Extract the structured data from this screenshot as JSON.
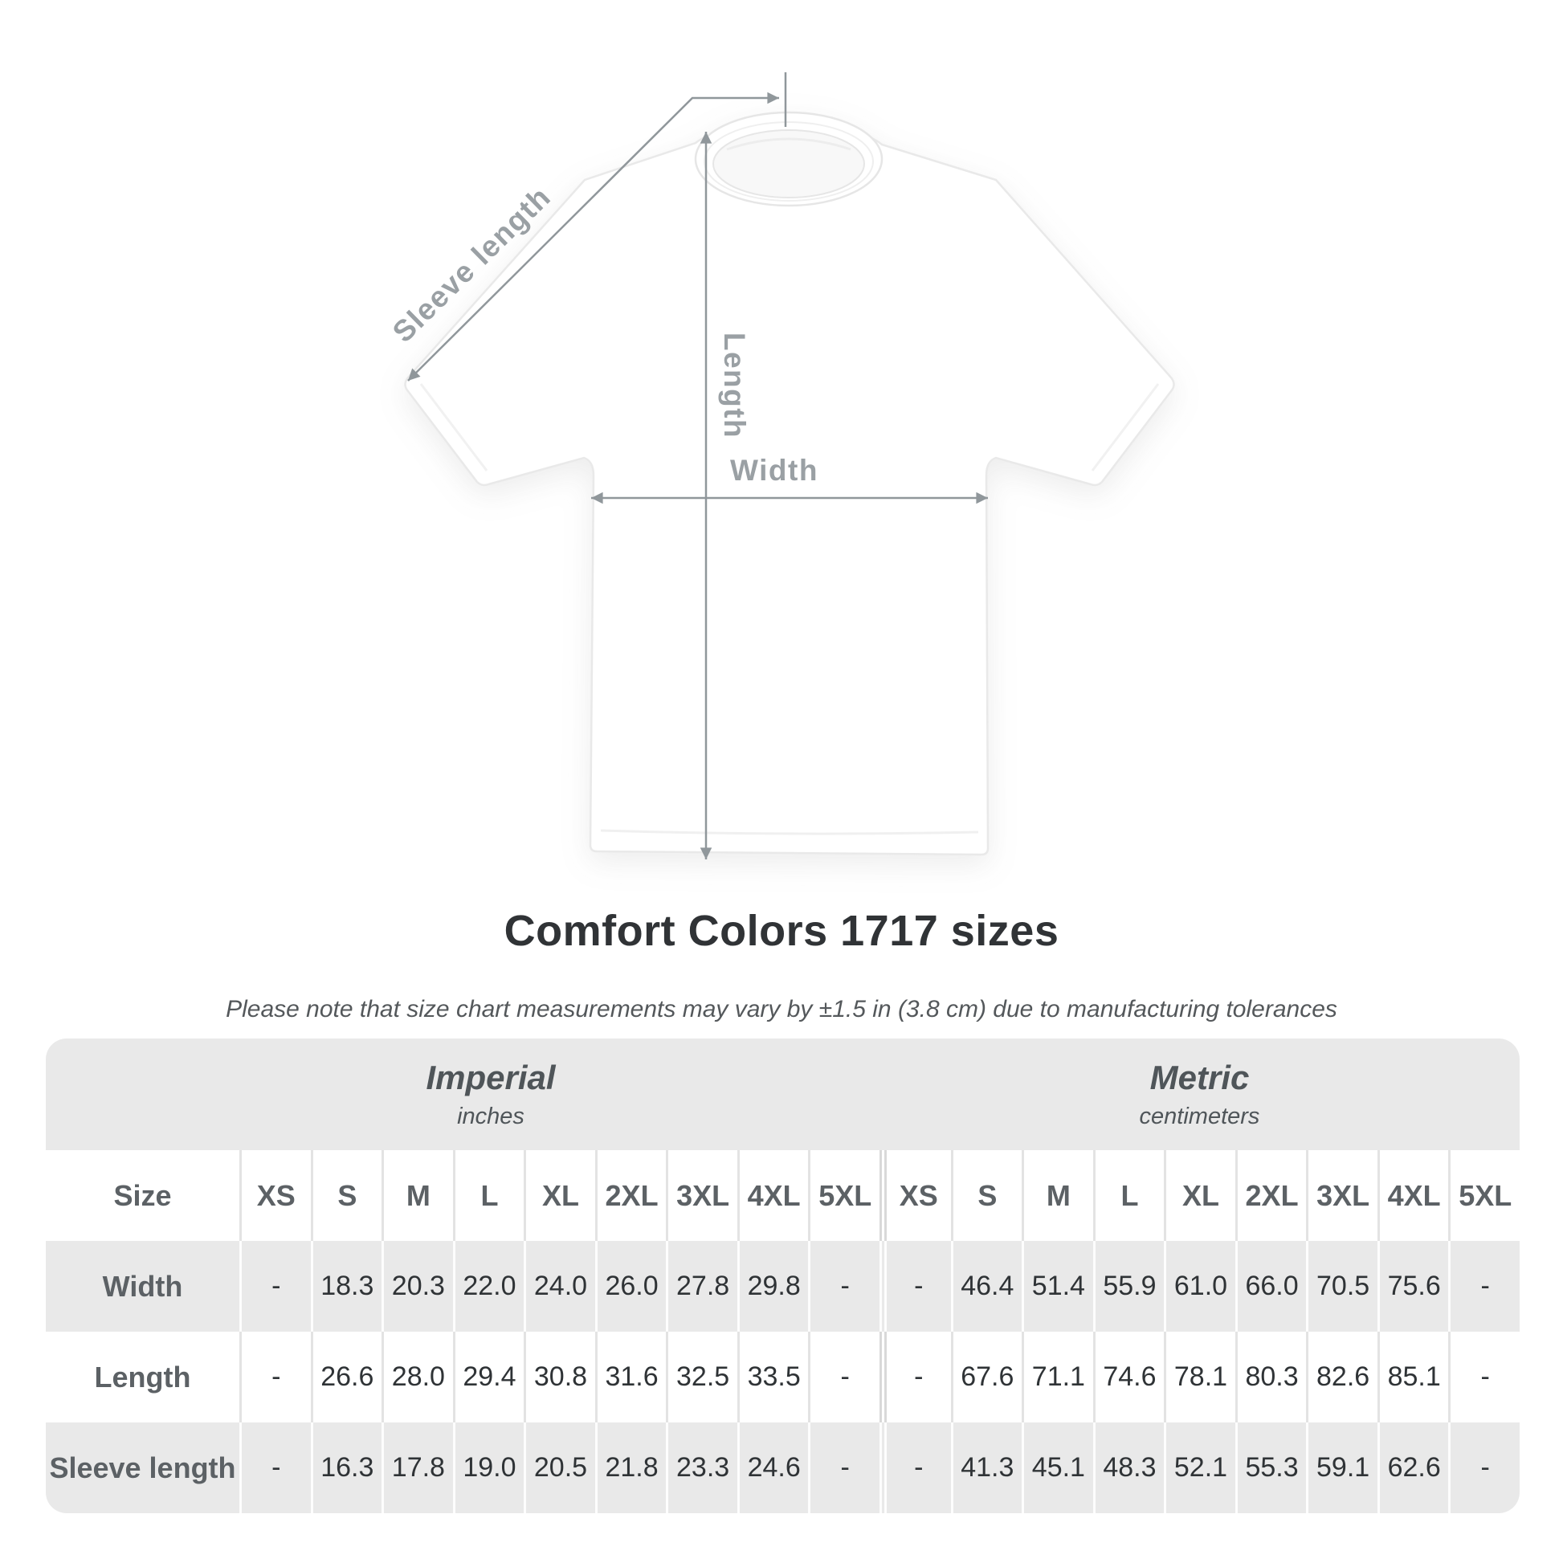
{
  "diagram": {
    "labels": {
      "sleeve_length": "Sleeve length",
      "length": "Length",
      "width": "Width"
    }
  },
  "header": {
    "title": "Comfort Colors 1717 sizes",
    "subtitle": "Please note that size chart measurements may vary by ±1.5 in (3.8 cm) due to manufacturing tolerances"
  },
  "chart_data": {
    "type": "table",
    "title": "Comfort Colors 1717 sizes",
    "size_header_label": "Size",
    "sizes": [
      "XS",
      "S",
      "M",
      "L",
      "XL",
      "2XL",
      "3XL",
      "4XL",
      "5XL"
    ],
    "unit_groups": [
      {
        "name": "Imperial",
        "unit": "inches"
      },
      {
        "name": "Metric",
        "unit": "centimeters"
      }
    ],
    "rows": [
      {
        "label": "Width",
        "imperial": [
          "-",
          "18.3",
          "20.3",
          "22.0",
          "24.0",
          "26.0",
          "27.8",
          "29.8",
          "-"
        ],
        "metric": [
          "-",
          "46.4",
          "51.4",
          "55.9",
          "61.0",
          "66.0",
          "70.5",
          "75.6",
          "-"
        ]
      },
      {
        "label": "Length",
        "imperial": [
          "-",
          "26.6",
          "28.0",
          "29.4",
          "30.8",
          "31.6",
          "32.5",
          "33.5",
          "-"
        ],
        "metric": [
          "-",
          "67.6",
          "71.1",
          "74.6",
          "78.1",
          "80.3",
          "82.6",
          "85.1",
          "-"
        ]
      },
      {
        "label": "Sleeve length",
        "imperial": [
          "-",
          "16.3",
          "17.8",
          "19.0",
          "20.5",
          "21.8",
          "23.3",
          "24.6",
          "-"
        ],
        "metric": [
          "-",
          "41.3",
          "45.1",
          "48.3",
          "52.1",
          "55.3",
          "59.1",
          "62.6",
          "-"
        ]
      }
    ]
  },
  "colors": {
    "background": "#ffffff",
    "table_band_gray": "#e9e9e9",
    "title_text": "#303336",
    "subtitle_text": "#54585b",
    "header_text": "#5c6165",
    "value_text": "#2f3336",
    "measure_line": "#90979b",
    "measure_label": "#9aa0a4"
  }
}
